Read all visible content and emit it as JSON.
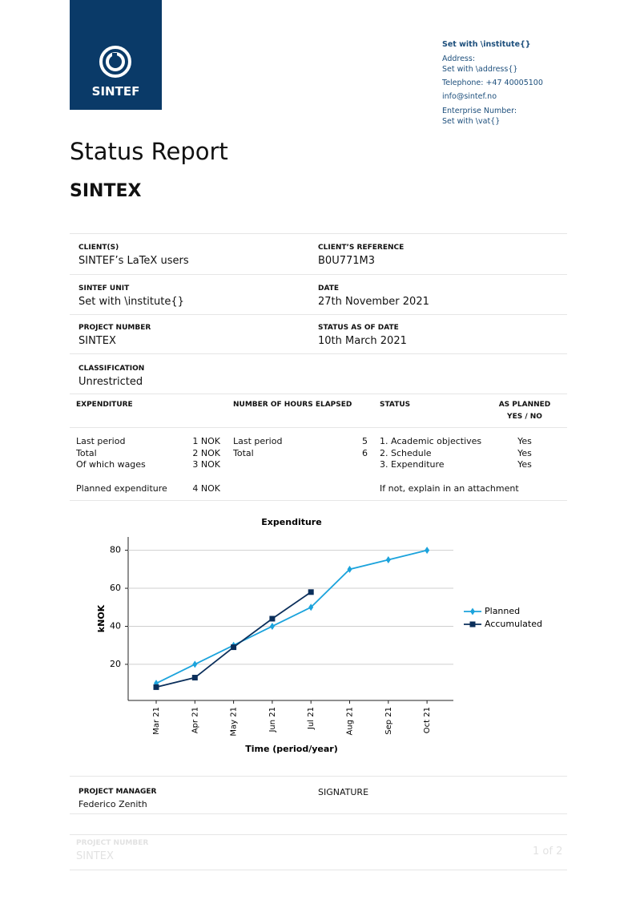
{
  "header": {
    "logo": "SINTEF",
    "contact": [
      "Set with \\institute{}",
      "Address:",
      "Set with \\address{}",
      "Telephone: +47  40005100",
      "info@sintef.no",
      "Enterprise Number:",
      "Set with \\vat{}"
    ]
  },
  "title": "Status Report",
  "subtitle": "SINTEX",
  "fields": [
    {
      "label": "CLIENT(S)",
      "value": "SINTEF’s LaTeX users"
    },
    {
      "label": "CLIENT’S REFERENCE",
      "value": "B0U771M3"
    },
    {
      "label": "SINTEF UNIT",
      "value": "Set with \\institute{}"
    },
    {
      "label": "DATE",
      "value": "27th November 2021"
    },
    {
      "label": "PROJECT NUMBER",
      "value": "SINTEX"
    },
    {
      "label": "STATUS AS OF DATE",
      "value": "10th March 2021"
    },
    {
      "label": "CLASSIFICATION",
      "value": "Unrestricted"
    }
  ],
  "table": {
    "headers": [
      "EXPENDITURE",
      "NUMBER OF HOURS ELAPSED",
      "STATUS",
      "AS PLANNED",
      "YES / NO"
    ],
    "expenditure": [
      [
        "Last period",
        "1 NOK"
      ],
      [
        "Total",
        "2 NOK"
      ],
      [
        "Of which wages",
        "3 NOK"
      ],
      [
        "Planned expenditure",
        "4 NOK"
      ]
    ],
    "hours": [
      [
        "Last period",
        "5"
      ],
      [
        "Total",
        "6"
      ]
    ],
    "status": [
      [
        "1. Academic objectives",
        "Yes"
      ],
      [
        "2. Schedule",
        "Yes"
      ],
      [
        "3. Expenditure",
        "Yes"
      ]
    ],
    "note": "If not, explain in an attachment"
  },
  "chart_data": {
    "type": "line",
    "title": "Expenditure",
    "x_label": "Time (period/year)",
    "y_label": "kNOK",
    "categories": [
      "Mar 21",
      "Apr 21",
      "May 21",
      "Jun 21",
      "Jul 21",
      "Aug 21",
      "Sep 21",
      "Oct 21"
    ],
    "series": [
      {
        "name": "Planned",
        "color": "#1ba3dc",
        "marker": "diamond",
        "values": [
          10,
          20,
          30,
          40,
          50,
          70,
          75,
          80
        ]
      },
      {
        "name": "Accumulated",
        "color": "#0b2f5b",
        "marker": "square",
        "values": [
          8,
          13,
          29,
          44,
          58,
          null,
          null,
          null
        ]
      }
    ],
    "ylim": [
      1,
      87
    ],
    "yticks": [
      20,
      40,
      60,
      80
    ],
    "grid": true,
    "legend": "right"
  },
  "footer": {
    "manager_label": "PROJECT MANAGER",
    "manager": "Federico Zenith",
    "signature_label": "SIGNATURE",
    "project_label": "PROJECT NUMBER",
    "project": "SINTEX",
    "page": "1 of 2"
  }
}
